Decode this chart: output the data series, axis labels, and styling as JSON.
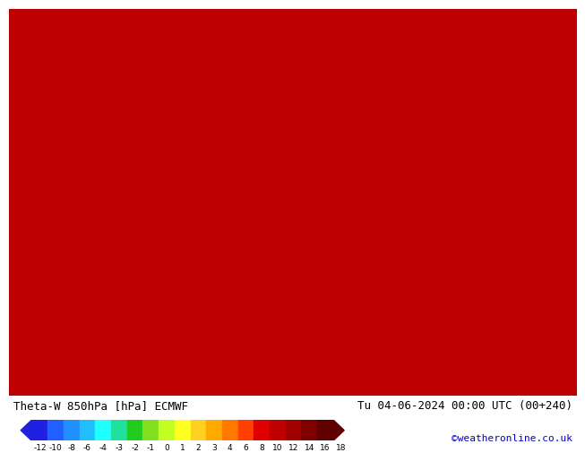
{
  "title_left": "Theta-W 850hPa [hPa] ECMWF",
  "title_right": "Tu 04-06-2024 00:00 UTC (00+240)",
  "credit": "©weatheronline.co.uk",
  "colorbar_tick_labels": [
    "-12",
    "-10",
    "-8",
    "-6",
    "-4",
    "-3",
    "-2",
    "-1",
    "0",
    "1",
    "2",
    "3",
    "4",
    "6",
    "8",
    "10",
    "12",
    "14",
    "16",
    "18"
  ],
  "colorbar_colors": [
    "#2020e0",
    "#2060ff",
    "#2090ff",
    "#20c0ff",
    "#20ffff",
    "#20e0a0",
    "#20cc20",
    "#80e020",
    "#c0ff20",
    "#ffff20",
    "#ffd020",
    "#ffaa00",
    "#ff7800",
    "#ff4000",
    "#e00000",
    "#c00000",
    "#a00000",
    "#800000",
    "#600000"
  ],
  "map_bg_color": "#bb0000",
  "title_fontsize": 9,
  "credit_color": "#0000cc",
  "credit_fontsize": 8
}
